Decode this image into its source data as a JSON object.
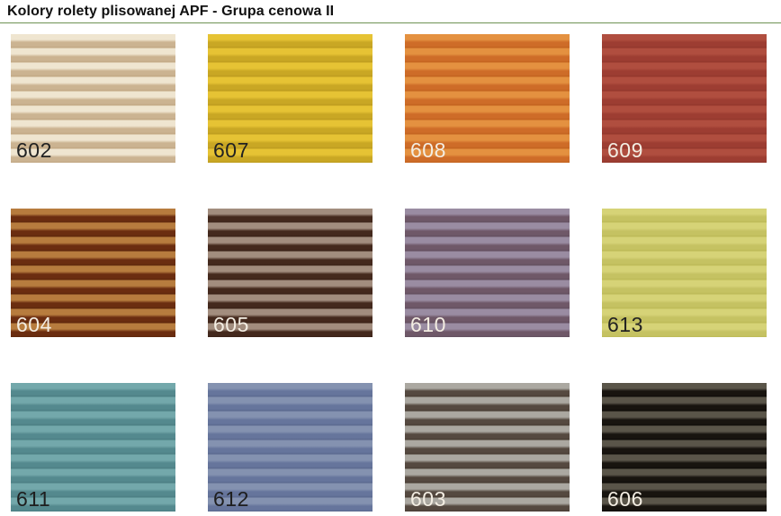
{
  "page": {
    "title": "Kolory rolety plisowanej APF - Grupa cenowa II",
    "divider_color": "#6e9253",
    "background_color": "#ffffff"
  },
  "swatches": [
    {
      "code": "602",
      "stripe_light": "#efe5d0",
      "stripe_dark": "#cbb391",
      "stripe_edge": "#c2a883",
      "label_color": "#222222"
    },
    {
      "code": "607",
      "stripe_light": "#e6c334",
      "stripe_dark": "#c9a724",
      "stripe_edge": "#bd9c1e",
      "label_color": "#222222"
    },
    {
      "code": "608",
      "stripe_light": "#e49140",
      "stripe_dark": "#ce6c28",
      "stripe_edge": "#c2631f",
      "label_color": "#f3ede2"
    },
    {
      "code": "609",
      "stripe_light": "#b04e3f",
      "stripe_dark": "#9d3d32",
      "stripe_edge": "#93372c",
      "label_color": "#f3ede2"
    },
    {
      "code": "604",
      "stripe_light": "#b77c3e",
      "stripe_dark": "#6b2d10",
      "stripe_edge": "#5e270c",
      "label_color": "#f3ede2"
    },
    {
      "code": "605",
      "stripe_light": "#a28d7e",
      "stripe_dark": "#44291d",
      "stripe_edge": "#3b2217",
      "label_color": "#f3ede2"
    },
    {
      "code": "610",
      "stripe_light": "#9a8ca2",
      "stripe_dark": "#6f5868",
      "stripe_edge": "#645060",
      "label_color": "#f3ede2"
    },
    {
      "code": "613",
      "stripe_light": "#d6d377",
      "stripe_dark": "#c5c262",
      "stripe_edge": "#bdba58",
      "label_color": "#222222"
    },
    {
      "code": "611",
      "stripe_light": "#73a8ab",
      "stripe_dark": "#54898e",
      "stripe_edge": "#4c7f84",
      "label_color": "#1e1e1e"
    },
    {
      "code": "612",
      "stripe_light": "#8492b0",
      "stripe_dark": "#66759c",
      "stripe_edge": "#5c6a8f",
      "label_color": "#1e1e1e"
    },
    {
      "code": "603",
      "stripe_light": "#aba8a1",
      "stripe_dark": "#554940",
      "stripe_edge": "#4a3f36",
      "label_color": "#f3ede2"
    },
    {
      "code": "606",
      "stripe_light": "#5a5549",
      "stripe_dark": "#18140f",
      "stripe_edge": "#100d09",
      "label_color": "#f3ede2"
    }
  ]
}
